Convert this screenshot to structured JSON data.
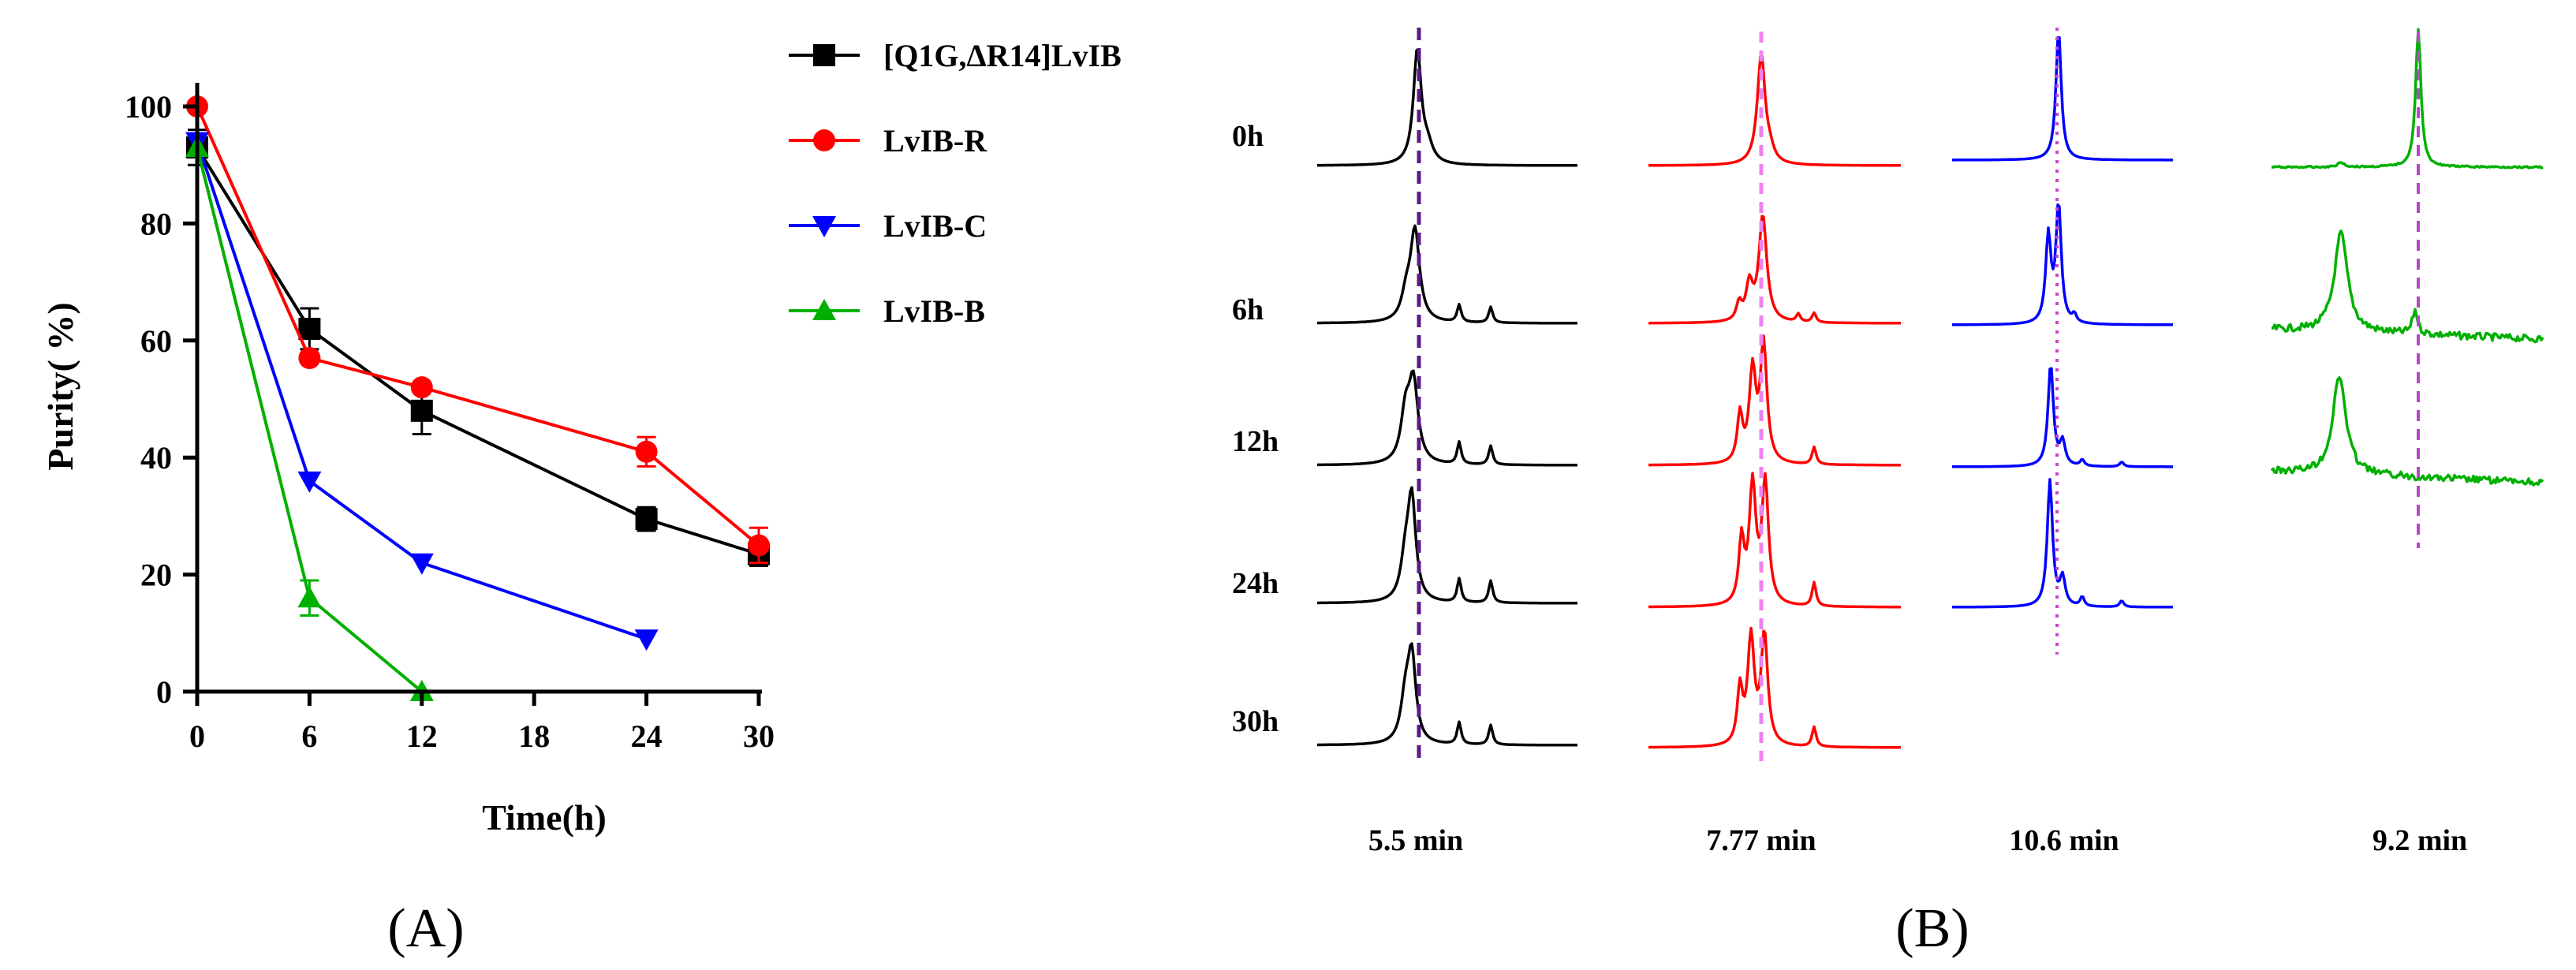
{
  "panel_a": {
    "label": "(A)",
    "chart_data": {
      "type": "line",
      "title": "",
      "xlabel": "Time(h)",
      "ylabel": "Purity( %)",
      "xlim": [
        0,
        30
      ],
      "ylim": [
        0,
        100
      ],
      "xticks": [
        "0",
        "6",
        "12",
        "18",
        "24",
        "30"
      ],
      "yticks": [
        "0",
        "20",
        "40",
        "60",
        "80",
        "100"
      ],
      "grid": false,
      "legend_position": "right",
      "series": [
        {
          "name": "[Q1G,ΔR14]LvIB",
          "color": "#000000",
          "marker": "square",
          "x": [
            0,
            6,
            12,
            24,
            30
          ],
          "y": [
            93,
            62,
            48,
            29.5,
            23.5
          ],
          "err": [
            3,
            3.5,
            4,
            2,
            2
          ]
        },
        {
          "name": "LvIB-R",
          "color": "#ff0000",
          "marker": "circle",
          "x": [
            0,
            6,
            12,
            24,
            30
          ],
          "y": [
            100,
            57,
            52,
            41,
            25
          ],
          "err": [
            0,
            0,
            0,
            2.5,
            3
          ]
        },
        {
          "name": "LvIB-C",
          "color": "#0000ff",
          "marker": "triangle-down",
          "x": [
            0,
            6,
            12,
            24
          ],
          "y": [
            94,
            36,
            22,
            9
          ],
          "err": [
            0,
            0,
            0,
            0
          ]
        },
        {
          "name": "LvIB-B",
          "color": "#00b000",
          "marker": "triangle-up",
          "x": [
            0,
            6,
            12
          ],
          "y": [
            93,
            16,
            0
          ],
          "err": [
            0,
            3,
            0
          ]
        }
      ]
    }
  },
  "panel_b": {
    "label": "(B)",
    "time_labels": [
      "0h",
      "6h",
      "12h",
      "24h",
      "30h"
    ],
    "columns": [
      {
        "retention": "5.5 min",
        "color": "#000000",
        "marker_color": "#5a1a8a"
      },
      {
        "retention": "7.77 min",
        "color": "#ff0000",
        "marker_color": "#ee82ee"
      },
      {
        "retention": "10.6 min",
        "color": "#0000ff",
        "marker_color": "#cc44cc"
      },
      {
        "retention": "9.2 min",
        "color": "#00b000",
        "marker_color": "#bb44cc"
      }
    ]
  }
}
